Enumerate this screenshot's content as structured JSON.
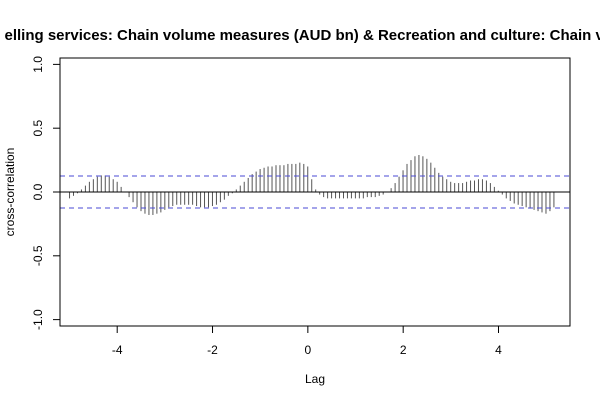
{
  "chart_data": {
    "type": "bar",
    "title": "elling services: Chain volume measures (AUD bn) & Recreation and culture: Chain volun",
    "xlabel": "Lag",
    "ylabel": "cross-correlation",
    "xlim": [
      -5.2,
      5.5
    ],
    "ylim": [
      -1.05,
      1.05
    ],
    "x_ticks": [
      -4,
      -2,
      0,
      2,
      4
    ],
    "y_ticks": [
      -1.0,
      -0.5,
      0.0,
      0.5,
      1.0
    ],
    "y_tick_labels": [
      "-1.0",
      "-0.5",
      "0.0",
      "0.5",
      "1.0"
    ],
    "confidence_limit": 0.125,
    "colors": {
      "bars": "#555555",
      "ci": "#4a4ad6",
      "zero": "#000000",
      "frame": "#000000"
    },
    "lag_start": -5.0,
    "lag_step": 0.0833,
    "values": [
      -0.05,
      -0.03,
      -0.01,
      0.02,
      0.05,
      0.08,
      0.1,
      0.12,
      0.13,
      0.13,
      0.12,
      0.1,
      0.08,
      0.04,
      0.0,
      -0.04,
      -0.08,
      -0.12,
      -0.15,
      -0.17,
      -0.18,
      -0.18,
      -0.17,
      -0.16,
      -0.14,
      -0.12,
      -0.11,
      -0.1,
      -0.1,
      -0.1,
      -0.1,
      -0.1,
      -0.11,
      -0.12,
      -0.12,
      -0.12,
      -0.11,
      -0.1,
      -0.08,
      -0.06,
      -0.03,
      -0.01,
      0.02,
      0.05,
      0.08,
      0.11,
      0.14,
      0.16,
      0.18,
      0.19,
      0.2,
      0.2,
      0.21,
      0.21,
      0.21,
      0.22,
      0.22,
      0.22,
      0.23,
      0.22,
      0.2,
      0.1,
      0.02,
      -0.02,
      -0.04,
      -0.05,
      -0.05,
      -0.05,
      -0.05,
      -0.05,
      -0.05,
      -0.05,
      -0.05,
      -0.05,
      -0.05,
      -0.04,
      -0.04,
      -0.04,
      -0.03,
      -0.02,
      0.0,
      0.03,
      0.07,
      0.12,
      0.17,
      0.22,
      0.25,
      0.28,
      0.29,
      0.28,
      0.26,
      0.23,
      0.19,
      0.15,
      0.12,
      0.1,
      0.08,
      0.07,
      0.07,
      0.07,
      0.08,
      0.09,
      0.09,
      0.1,
      0.1,
      0.09,
      0.07,
      0.04,
      0.01,
      -0.02,
      -0.05,
      -0.07,
      -0.09,
      -0.1,
      -0.11,
      -0.12,
      -0.13,
      -0.14,
      -0.15,
      -0.16,
      -0.17,
      -0.15,
      -0.12
    ]
  }
}
